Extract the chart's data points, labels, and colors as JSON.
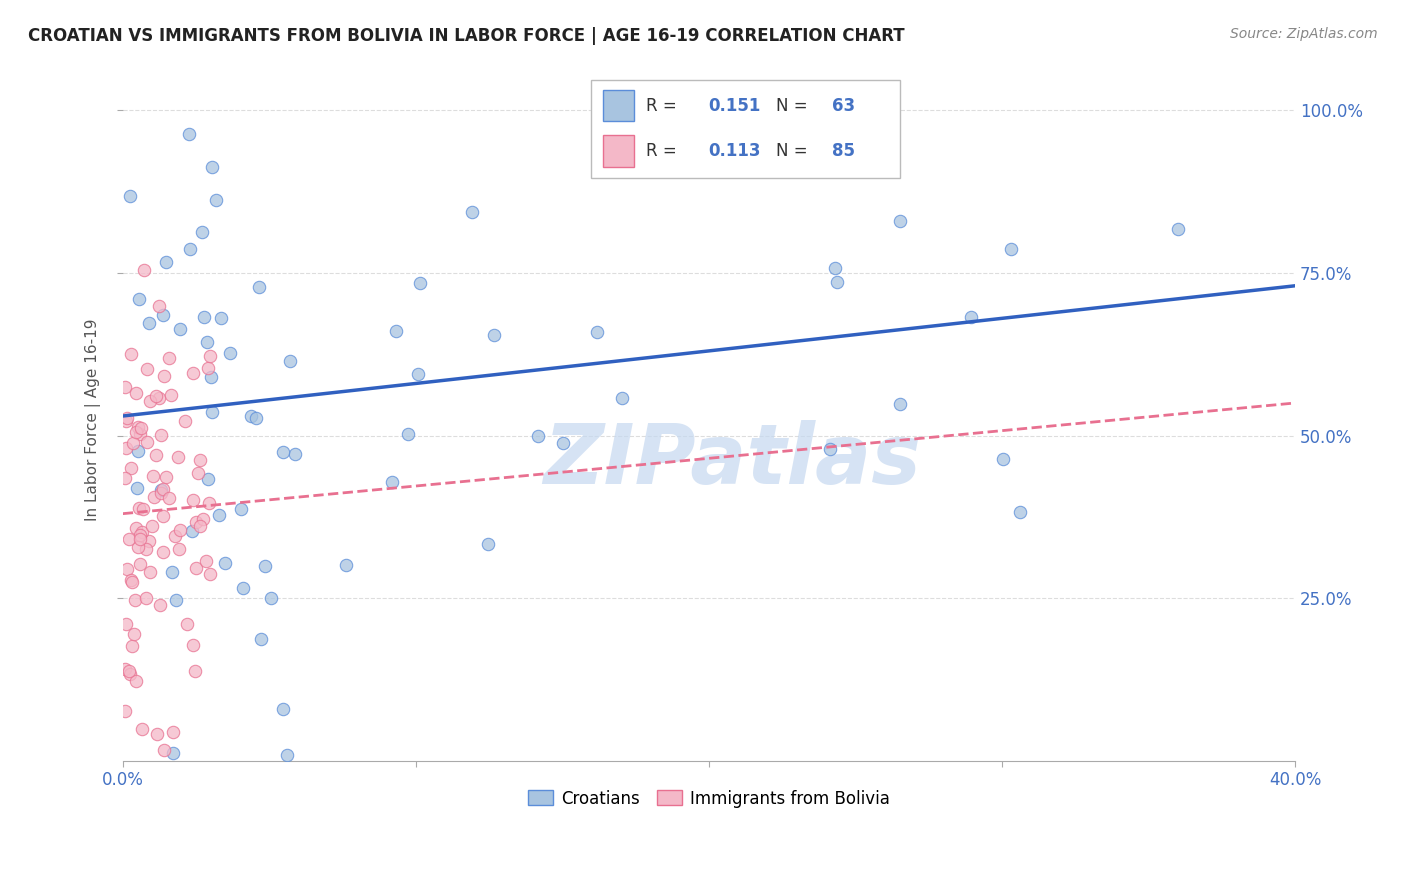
{
  "title": "CROATIAN VS IMMIGRANTS FROM BOLIVIA IN LABOR FORCE | AGE 16-19 CORRELATION CHART",
  "source": "Source: ZipAtlas.com",
  "ylabel": "In Labor Force | Age 16-19",
  "xlim": [
    0,
    0.4
  ],
  "ylim": [
    0,
    1.05
  ],
  "xtick_vals": [
    0.0,
    0.1,
    0.2,
    0.3,
    0.4
  ],
  "xtick_labels_show": [
    "0.0%",
    "",
    "",
    "",
    "40.0%"
  ],
  "ytick_vals_right": [
    0.25,
    0.5,
    0.75,
    1.0
  ],
  "ytick_labels_right": [
    "25.0%",
    "50.0%",
    "75.0%",
    "100.0%"
  ],
  "color_croatian_fill": "#a8c4e0",
  "color_croatian_edge": "#5b8dd9",
  "color_bolivia_fill": "#f4b8c8",
  "color_bolivia_edge": "#e87090",
  "color_line_croatian": "#3060c0",
  "color_line_bolivia": "#e87090",
  "color_text_blue": "#4472c4",
  "color_title": "#222222",
  "color_source": "#888888",
  "watermark": "ZIPatlas",
  "watermark_color": "#c5d8f0",
  "background_color": "#ffffff",
  "grid_color": "#dddddd",
  "croatian_line_x0": 0.0,
  "croatian_line_y0": 0.53,
  "croatian_line_x1": 0.4,
  "croatian_line_y1": 0.73,
  "bolivia_line_x0": 0.0,
  "bolivia_line_y0": 0.38,
  "bolivia_line_x1": 0.4,
  "bolivia_line_y1": 0.55
}
